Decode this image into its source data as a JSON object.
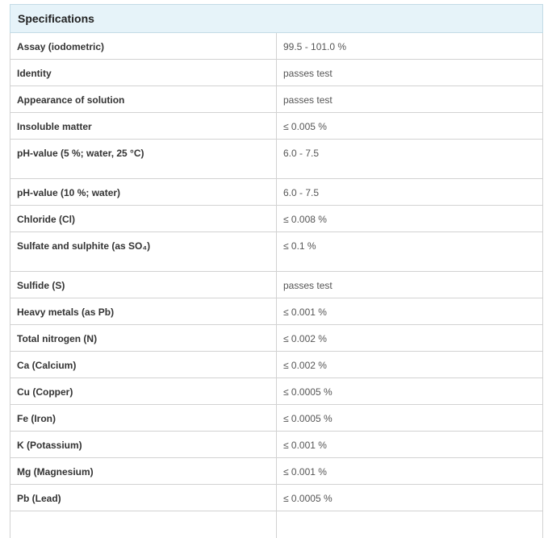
{
  "table": {
    "header": "Specifications",
    "rows": [
      {
        "parameter": "Assay (iodometric)",
        "value": "99.5 - 101.0 %"
      },
      {
        "parameter": "Identity",
        "value": "passes test"
      },
      {
        "parameter": "Appearance of solution",
        "value": "passes test"
      },
      {
        "parameter": "Insoluble matter",
        "value": "≤ 0.005 %"
      },
      {
        "parameter": "pH-value (5 %; water, 25 °C)",
        "value": "6.0 - 7.5"
      },
      {
        "parameter": "pH-value (10  %; water)",
        "value": "6.0 - 7.5"
      },
      {
        "parameter": "Chloride (Cl)",
        "value": "≤ 0.008 %"
      },
      {
        "parameter": "Sulfate and sulphite (as SO₄)",
        "value": "≤ 0.1 %"
      },
      {
        "parameter": "Sulfide (S)",
        "value": "passes test"
      },
      {
        "parameter": "Heavy metals (as Pb)",
        "value": "≤ 0.001 %"
      },
      {
        "parameter": "Total nitrogen (N)",
        "value": "≤ 0.002 %"
      },
      {
        "parameter": "Ca (Calcium)",
        "value": "≤ 0.002 %"
      },
      {
        "parameter": "Cu (Copper)",
        "value": "≤ 0.0005 %"
      },
      {
        "parameter": "Fe (Iron)",
        "value": "≤ 0.0005 %"
      },
      {
        "parameter": "K (Potassium)",
        "value": "≤ 0.001 %"
      },
      {
        "parameter": "Mg (Magnesium)",
        "value": "≤ 0.001 %"
      },
      {
        "parameter": "Pb (Lead)",
        "value": "≤ 0.0005 %"
      },
      {
        "parameter": "",
        "value": ""
      }
    ]
  }
}
